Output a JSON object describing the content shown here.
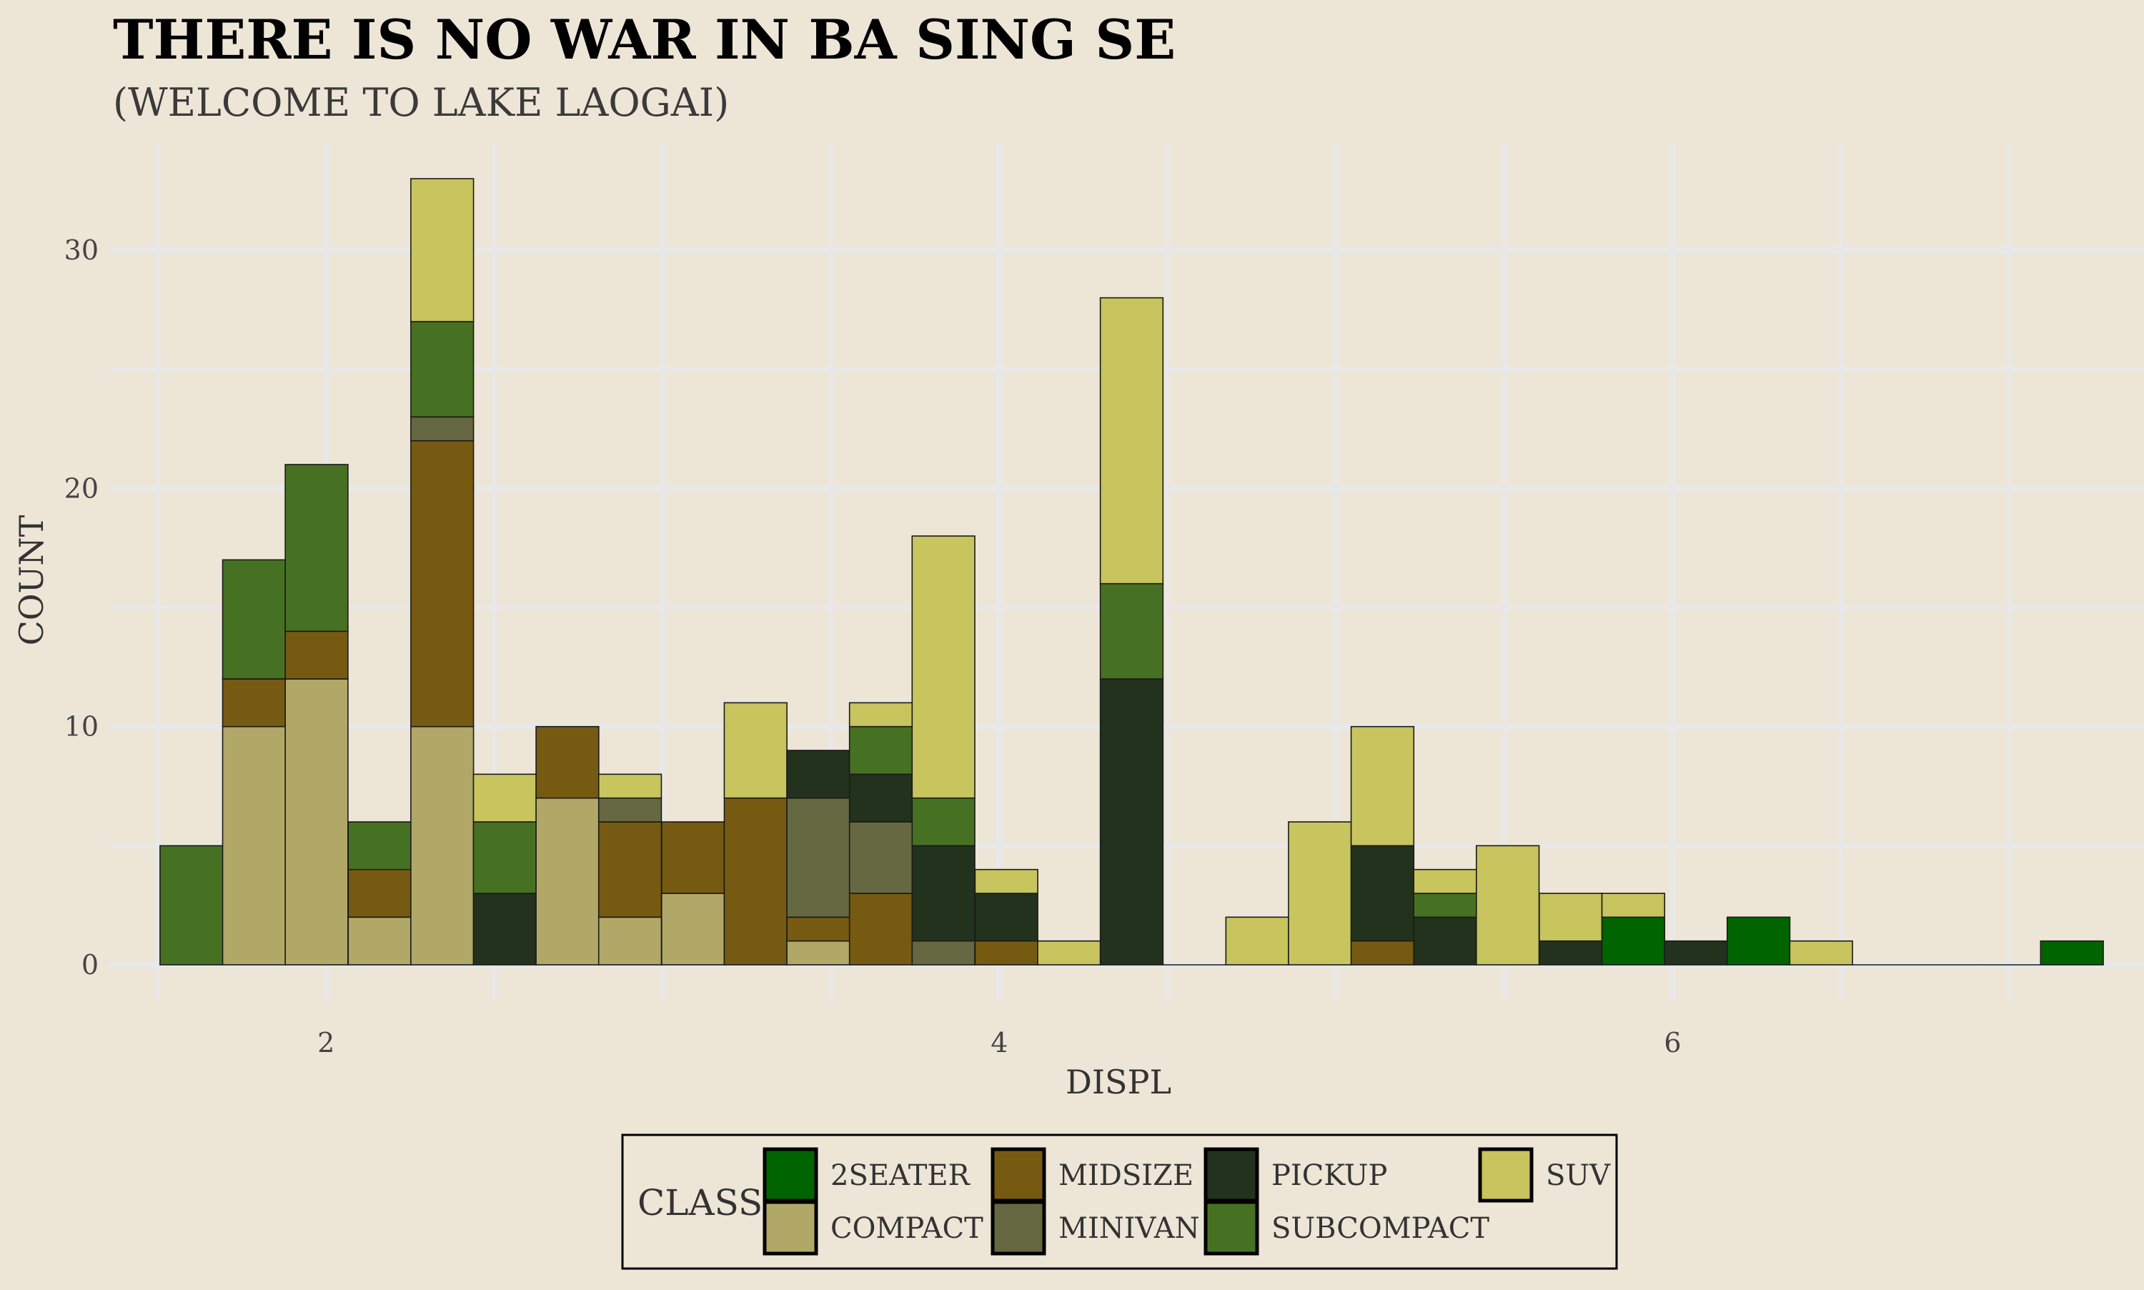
{
  "chart_data": {
    "type": "bar",
    "stacked": true,
    "title": "THERE IS NO WAR IN BA SING SE",
    "subtitle": "(WELCOME TO LAKE LAOGAI)",
    "xlabel": "DISPL",
    "ylabel": "COUNT",
    "xlim": [
      1.35,
      7.4
    ],
    "ylim": [
      -1.5,
      34.5
    ],
    "x_ticks": [
      2,
      4,
      6
    ],
    "y_ticks": [
      0,
      10,
      20,
      30
    ],
    "grid": true,
    "legend_position": "bottom",
    "legend_title": "CLASS",
    "bin_width": 0.1862,
    "bin_centers": [
      1.6,
      1.786,
      1.972,
      2.159,
      2.345,
      2.531,
      2.717,
      2.903,
      3.09,
      3.276,
      3.462,
      3.648,
      3.834,
      4.021,
      4.207,
      4.393,
      4.579,
      4.766,
      4.952,
      5.138,
      5.324,
      5.51,
      5.697,
      5.883,
      6.069,
      6.255,
      6.441,
      6.628,
      6.814,
      7.0,
      7.186
    ],
    "series": [
      {
        "name": "2seater",
        "color": "#006400",
        "values": [
          0,
          0,
          0,
          0,
          0,
          0,
          0,
          0,
          0,
          0,
          0,
          0,
          0,
          0,
          0,
          0,
          0,
          0,
          0,
          0,
          0,
          0,
          0,
          2,
          0,
          2,
          0,
          0,
          0,
          0,
          1
        ]
      },
      {
        "name": "compact",
        "color": "#b1a868",
        "values": [
          0,
          10,
          12,
          2,
          10,
          0,
          7,
          2,
          3,
          0,
          1,
          0,
          0,
          0,
          0,
          0,
          0,
          0,
          0,
          0,
          0,
          0,
          0,
          0,
          0,
          0,
          0,
          0,
          0,
          0,
          0
        ]
      },
      {
        "name": "midsize",
        "color": "#775a12",
        "values": [
          0,
          2,
          2,
          2,
          12,
          0,
          3,
          4,
          3,
          7,
          1,
          3,
          0,
          1,
          0,
          0,
          0,
          0,
          0,
          1,
          0,
          0,
          0,
          0,
          0,
          0,
          0,
          0,
          0,
          0,
          0
        ]
      },
      {
        "name": "minivan",
        "color": "#666842",
        "values": [
          0,
          0,
          0,
          0,
          1,
          0,
          0,
          1,
          0,
          0,
          5,
          3,
          1,
          0,
          0,
          0,
          0,
          0,
          0,
          0,
          0,
          0,
          0,
          0,
          0,
          0,
          0,
          0,
          0,
          0,
          0
        ]
      },
      {
        "name": "pickup",
        "color": "#22321d",
        "values": [
          0,
          0,
          0,
          0,
          0,
          3,
          0,
          0,
          0,
          0,
          2,
          2,
          4,
          2,
          0,
          12,
          0,
          0,
          0,
          4,
          2,
          0,
          1,
          0,
          1,
          0,
          0,
          0,
          0,
          0,
          0
        ]
      },
      {
        "name": "subcompact",
        "color": "#477122",
        "values": [
          5,
          5,
          7,
          2,
          4,
          3,
          0,
          0,
          0,
          0,
          0,
          2,
          2,
          0,
          0,
          4,
          0,
          0,
          0,
          0,
          1,
          0,
          0,
          0,
          0,
          0,
          0,
          0,
          0,
          0,
          0
        ]
      },
      {
        "name": "suv",
        "color": "#c8c45e",
        "values": [
          0,
          0,
          0,
          0,
          6,
          2,
          0,
          1,
          0,
          4,
          0,
          1,
          11,
          1,
          1,
          12,
          0,
          2,
          6,
          5,
          1,
          5,
          2,
          1,
          0,
          0,
          1,
          0,
          0,
          0,
          0
        ]
      }
    ],
    "background_color": "#ede5d6",
    "grid_color": "#e8e8e8"
  }
}
